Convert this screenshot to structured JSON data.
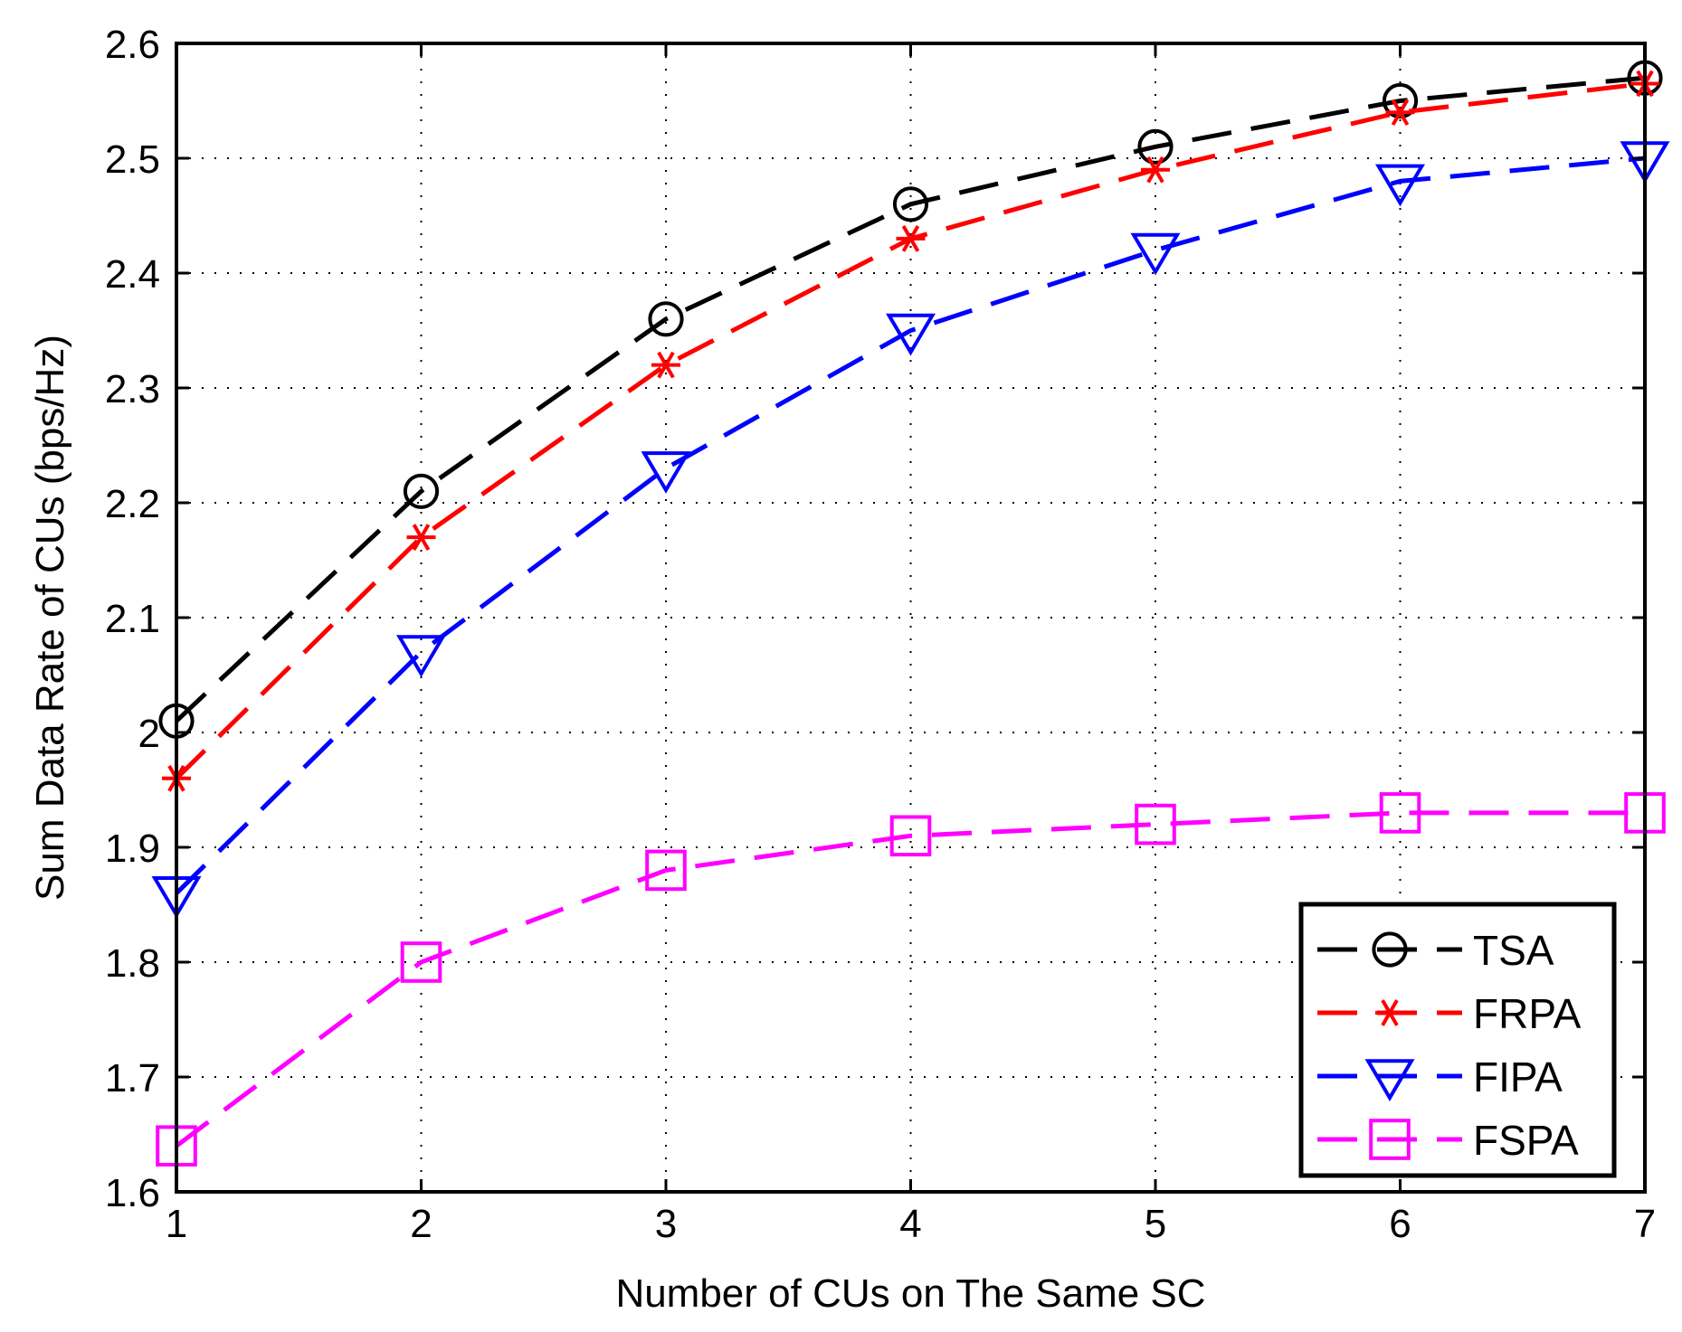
{
  "chart_data": {
    "type": "line",
    "title": "",
    "xlabel": "Number of CUs on The Same SC",
    "ylabel": "Sum Data Rate of CUs (bps/Hz)",
    "x": [
      1,
      2,
      3,
      4,
      5,
      6,
      7
    ],
    "xlim": [
      1,
      7
    ],
    "ylim": [
      1.6,
      2.6
    ],
    "xticks": [
      "1",
      "2",
      "3",
      "4",
      "5",
      "6",
      "7"
    ],
    "yticks": [
      "1.6",
      "1.7",
      "1.8",
      "1.9",
      "2",
      "2.1",
      "2.2",
      "2.3",
      "2.4",
      "2.5",
      "2.6"
    ],
    "grid": true,
    "legend_position": "bottom-right",
    "series": [
      {
        "name": "TSA",
        "color": "#000000",
        "marker": "circle",
        "values": [
          2.01,
          2.21,
          2.36,
          2.46,
          2.51,
          2.55,
          2.57
        ]
      },
      {
        "name": "FRPA",
        "color": "#ff0000",
        "marker": "star",
        "values": [
          1.96,
          2.17,
          2.32,
          2.43,
          2.49,
          2.54,
          2.565
        ]
      },
      {
        "name": "FIPA",
        "color": "#0000ff",
        "marker": "triangle-down",
        "values": [
          1.86,
          2.07,
          2.23,
          2.35,
          2.42,
          2.48,
          2.5
        ]
      },
      {
        "name": "FSPA",
        "color": "#ff00ff",
        "marker": "square",
        "values": [
          1.64,
          1.8,
          1.88,
          1.91,
          1.92,
          1.93,
          1.93
        ]
      }
    ]
  }
}
